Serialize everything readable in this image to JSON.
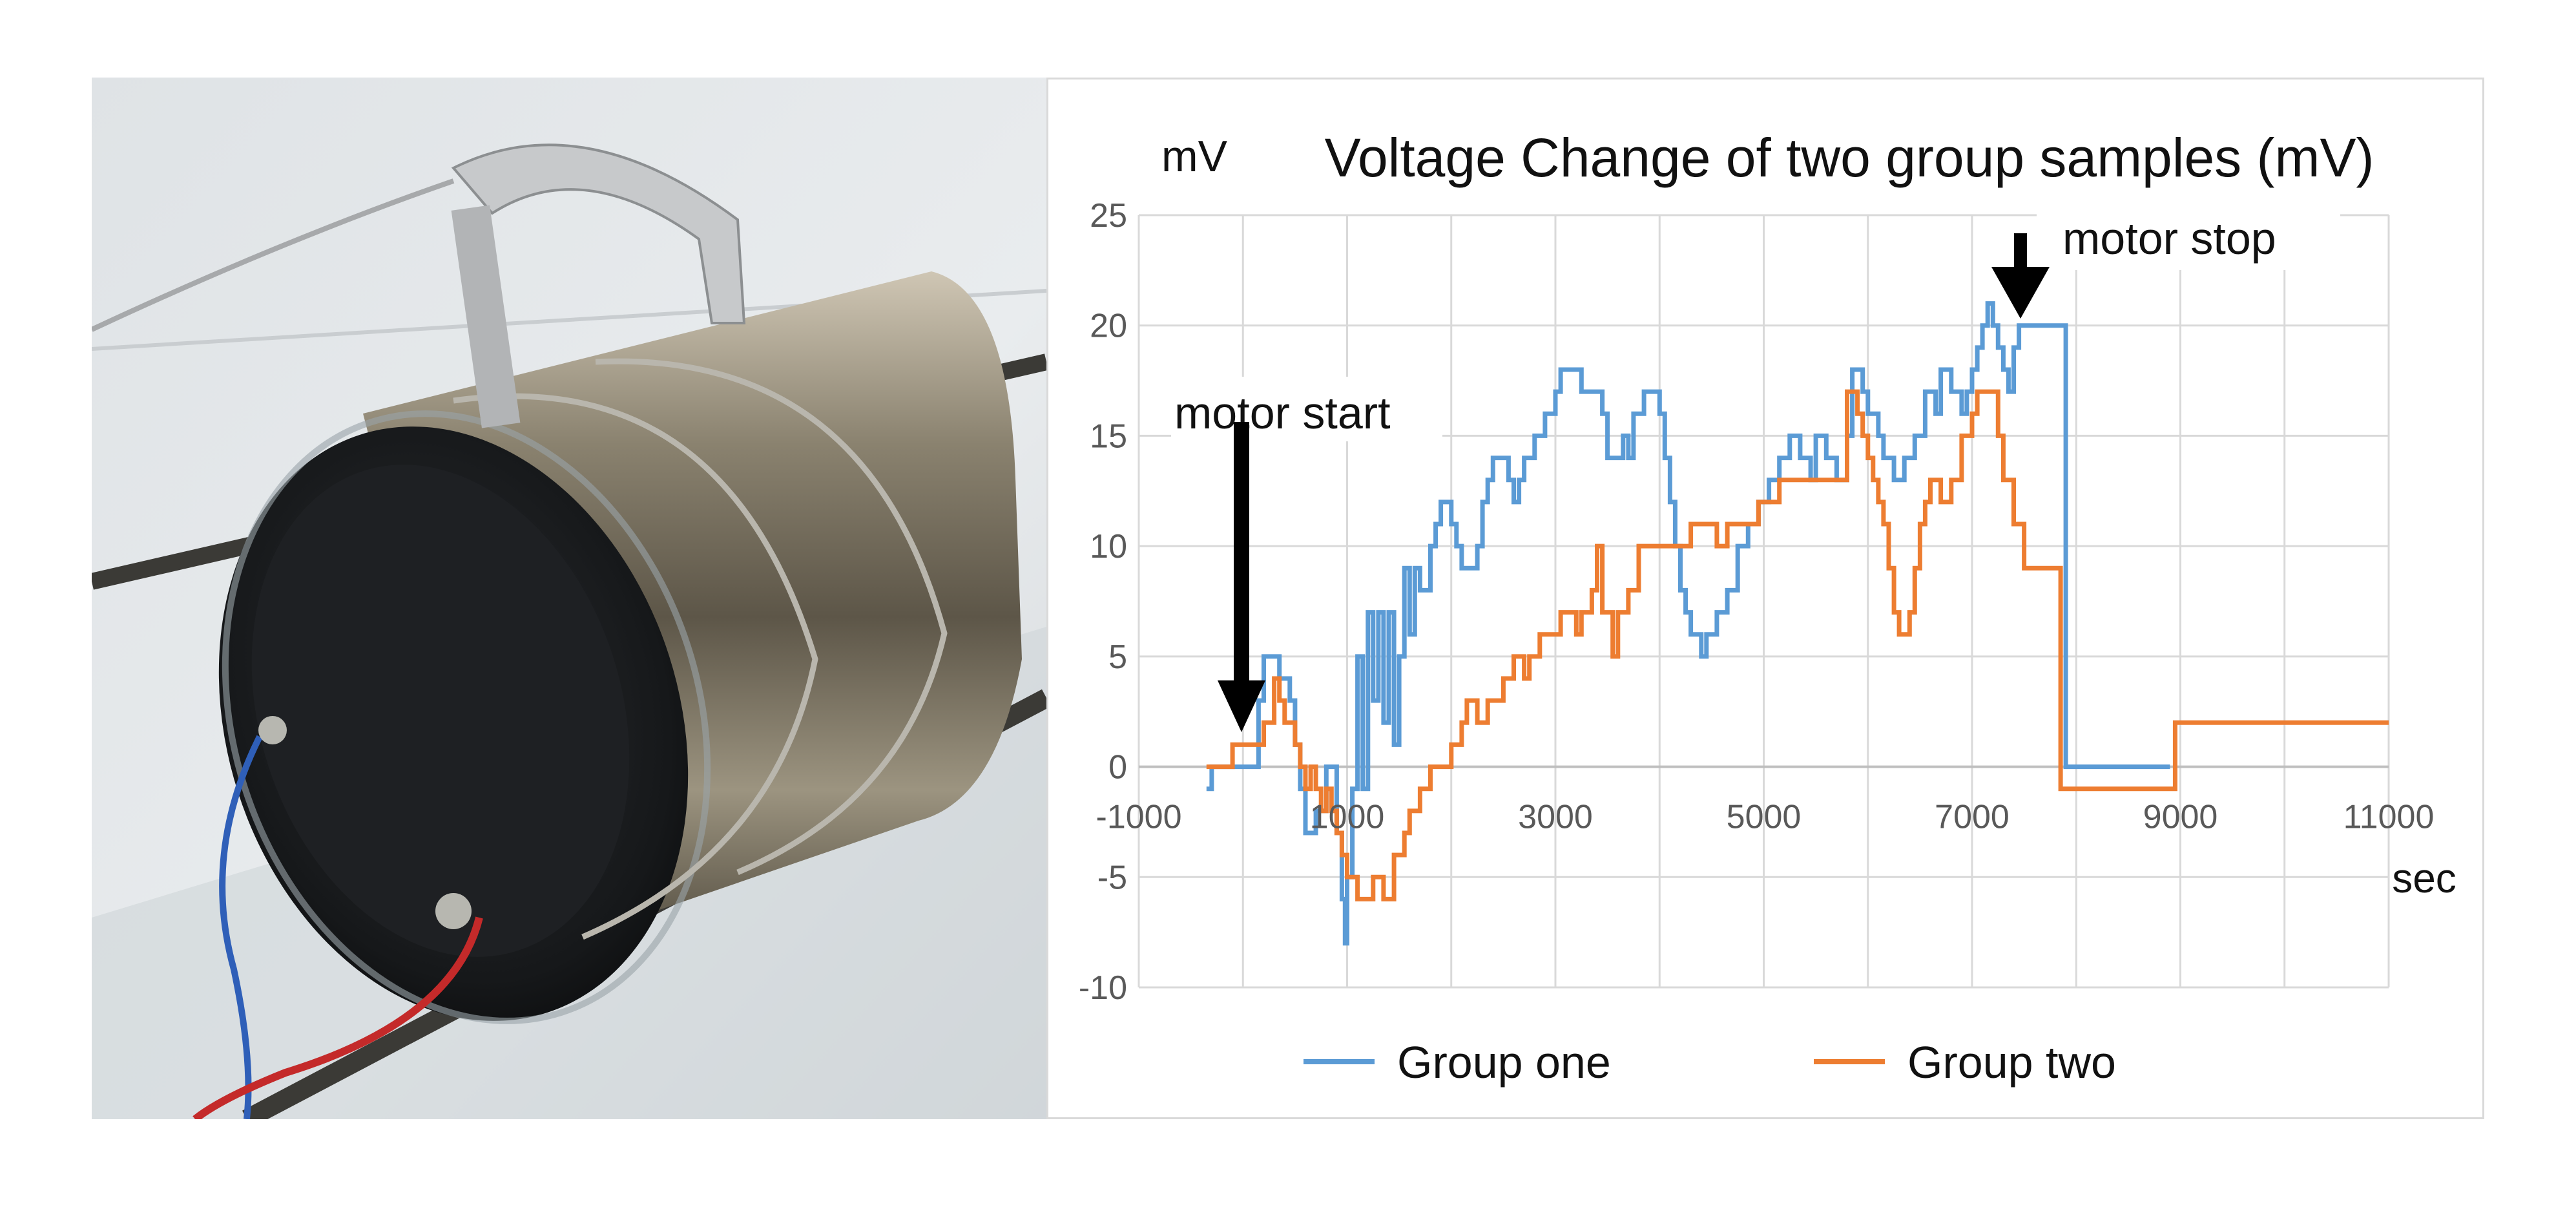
{
  "chart_data": {
    "type": "line",
    "title": "Voltage Change of two group samples (mV)",
    "ylabel": "mV",
    "xlabel": "sec",
    "xlim": [
      -1000,
      11000
    ],
    "ylim": [
      -10,
      25
    ],
    "x_ticks": [
      -1000,
      1000,
      3000,
      5000,
      7000,
      9000,
      11000
    ],
    "y_ticks": [
      -10,
      -5,
      0,
      5,
      10,
      15,
      20,
      25
    ],
    "grid": true,
    "legend": "bottom",
    "annotations": [
      {
        "text": "motor start",
        "x": 0,
        "y": 2
      },
      {
        "text": "motor stop",
        "x": 7400,
        "y": 20
      }
    ],
    "series": [
      {
        "name": "Group one",
        "color": "#5B9BD5",
        "step": true,
        "points": [
          [
            -350,
            -1
          ],
          [
            -300,
            0
          ],
          [
            0,
            0
          ],
          [
            150,
            3
          ],
          [
            200,
            5
          ],
          [
            300,
            5
          ],
          [
            350,
            4
          ],
          [
            450,
            3
          ],
          [
            500,
            1
          ],
          [
            550,
            -1
          ],
          [
            600,
            -3
          ],
          [
            700,
            -2
          ],
          [
            800,
            0
          ],
          [
            900,
            -3
          ],
          [
            950,
            -6
          ],
          [
            980,
            -8
          ],
          [
            1000,
            -5
          ],
          [
            1050,
            -1
          ],
          [
            1100,
            5
          ],
          [
            1150,
            -1
          ],
          [
            1200,
            7
          ],
          [
            1250,
            3
          ],
          [
            1300,
            7
          ],
          [
            1350,
            2
          ],
          [
            1400,
            7
          ],
          [
            1450,
            1
          ],
          [
            1500,
            5
          ],
          [
            1550,
            9
          ],
          [
            1600,
            6
          ],
          [
            1650,
            9
          ],
          [
            1700,
            8
          ],
          [
            1800,
            10
          ],
          [
            1850,
            11
          ],
          [
            1900,
            12
          ],
          [
            2000,
            11
          ],
          [
            2050,
            10
          ],
          [
            2100,
            9
          ],
          [
            2250,
            10
          ],
          [
            2300,
            12
          ],
          [
            2350,
            13
          ],
          [
            2400,
            14
          ],
          [
            2550,
            13
          ],
          [
            2600,
            12
          ],
          [
            2650,
            13
          ],
          [
            2700,
            14
          ],
          [
            2800,
            15
          ],
          [
            2900,
            16
          ],
          [
            3000,
            17
          ],
          [
            3050,
            18
          ],
          [
            3250,
            17
          ],
          [
            3350,
            17
          ],
          [
            3450,
            16
          ],
          [
            3500,
            14
          ],
          [
            3650,
            15
          ],
          [
            3700,
            14
          ],
          [
            3750,
            16
          ],
          [
            3850,
            17
          ],
          [
            4000,
            16
          ],
          [
            4050,
            14
          ],
          [
            4100,
            12
          ],
          [
            4150,
            10
          ],
          [
            4200,
            8
          ],
          [
            4250,
            7
          ],
          [
            4300,
            6
          ],
          [
            4400,
            5
          ],
          [
            4450,
            6
          ],
          [
            4550,
            7
          ],
          [
            4650,
            8
          ],
          [
            4750,
            10
          ],
          [
            4850,
            11
          ],
          [
            4950,
            12
          ],
          [
            5050,
            13
          ],
          [
            5150,
            14
          ],
          [
            5250,
            15
          ],
          [
            5350,
            14
          ],
          [
            5450,
            13
          ],
          [
            5500,
            15
          ],
          [
            5600,
            14
          ],
          [
            5700,
            13
          ],
          [
            5800,
            15
          ],
          [
            5850,
            18
          ],
          [
            5950,
            17
          ],
          [
            6000,
            16
          ],
          [
            6100,
            15
          ],
          [
            6150,
            14
          ],
          [
            6250,
            13
          ],
          [
            6350,
            14
          ],
          [
            6450,
            15
          ],
          [
            6550,
            17
          ],
          [
            6650,
            16
          ],
          [
            6700,
            18
          ],
          [
            6800,
            17
          ],
          [
            6900,
            16
          ],
          [
            6950,
            17
          ],
          [
            7000,
            18
          ],
          [
            7050,
            19
          ],
          [
            7100,
            20
          ],
          [
            7150,
            21
          ],
          [
            7200,
            20
          ],
          [
            7250,
            19
          ],
          [
            7300,
            18
          ],
          [
            7350,
            17
          ],
          [
            7400,
            19
          ],
          [
            7450,
            20
          ],
          [
            7500,
            20
          ],
          [
            7900,
            10
          ],
          [
            7900,
            0
          ],
          [
            8900,
            0
          ]
        ]
      },
      {
        "name": "Group two",
        "color": "#ED7D31",
        "step": true,
        "points": [
          [
            -350,
            0
          ],
          [
            -100,
            1
          ],
          [
            200,
            2
          ],
          [
            300,
            4
          ],
          [
            350,
            3
          ],
          [
            400,
            2
          ],
          [
            500,
            1
          ],
          [
            550,
            0
          ],
          [
            600,
            -1
          ],
          [
            650,
            0
          ],
          [
            700,
            -1
          ],
          [
            750,
            -2
          ],
          [
            800,
            -1
          ],
          [
            850,
            -2
          ],
          [
            900,
            -3
          ],
          [
            950,
            -4
          ],
          [
            1000,
            -5
          ],
          [
            1100,
            -6
          ],
          [
            1250,
            -5
          ],
          [
            1350,
            -6
          ],
          [
            1450,
            -4
          ],
          [
            1550,
            -3
          ],
          [
            1600,
            -2
          ],
          [
            1700,
            -1
          ],
          [
            1800,
            0
          ],
          [
            1900,
            0
          ],
          [
            2000,
            1
          ],
          [
            2100,
            2
          ],
          [
            2150,
            3
          ],
          [
            2250,
            2
          ],
          [
            2350,
            3
          ],
          [
            2500,
            4
          ],
          [
            2600,
            5
          ],
          [
            2700,
            4
          ],
          [
            2750,
            5
          ],
          [
            2850,
            6
          ],
          [
            2950,
            6
          ],
          [
            3050,
            7
          ],
          [
            3200,
            6
          ],
          [
            3250,
            7
          ],
          [
            3350,
            8
          ],
          [
            3400,
            10
          ],
          [
            3450,
            7
          ],
          [
            3550,
            5
          ],
          [
            3600,
            7
          ],
          [
            3700,
            8
          ],
          [
            3800,
            10
          ],
          [
            4200,
            10
          ],
          [
            4300,
            11
          ],
          [
            4500,
            11
          ],
          [
            4550,
            10
          ],
          [
            4650,
            11
          ],
          [
            4950,
            12
          ],
          [
            5050,
            12
          ],
          [
            5150,
            13
          ],
          [
            5750,
            13
          ],
          [
            5800,
            17
          ],
          [
            5900,
            16
          ],
          [
            5950,
            15
          ],
          [
            6000,
            14
          ],
          [
            6050,
            13
          ],
          [
            6100,
            12
          ],
          [
            6150,
            11
          ],
          [
            6200,
            9
          ],
          [
            6250,
            7
          ],
          [
            6300,
            6
          ],
          [
            6400,
            7
          ],
          [
            6450,
            9
          ],
          [
            6500,
            11
          ],
          [
            6550,
            12
          ],
          [
            6600,
            13
          ],
          [
            6700,
            12
          ],
          [
            6800,
            13
          ],
          [
            6900,
            15
          ],
          [
            7000,
            16
          ],
          [
            7050,
            17
          ],
          [
            7150,
            17
          ],
          [
            7250,
            15
          ],
          [
            7300,
            13
          ],
          [
            7400,
            11
          ],
          [
            7500,
            9
          ],
          [
            7850,
            4
          ],
          [
            7850,
            -1
          ],
          [
            8950,
            -1
          ],
          [
            8950,
            2
          ],
          [
            11000,
            2
          ]
        ]
      }
    ]
  }
}
